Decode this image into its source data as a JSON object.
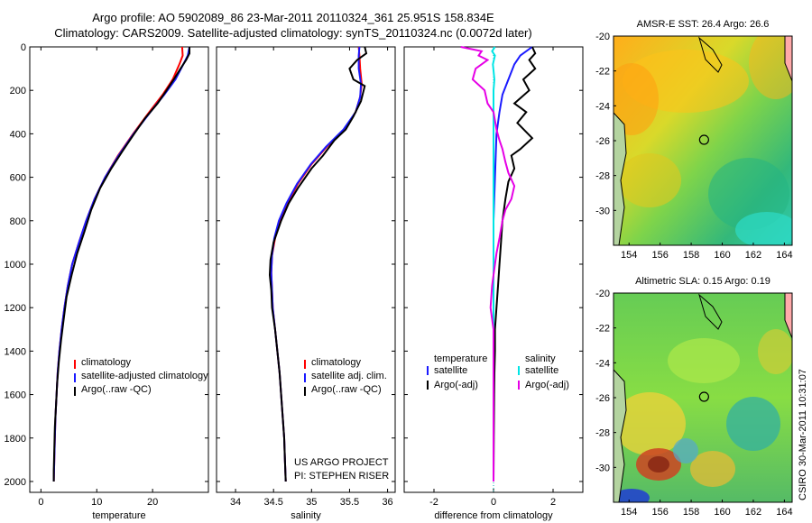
{
  "header": {
    "title_line1": "Argo profile: AO 5902089_86 23-Mar-2011 20110324_361 25.951S 158.834E",
    "title_line2": "Climatology: CARS2009. Satellite-adjusted climatology: synTS_20110324.nc (0.0072d later)"
  },
  "side_label": "CSIRO 30-Mar-2011 10:31:07",
  "colors": {
    "red": "#ff0000",
    "blue": "#1a1aff",
    "black": "#000000",
    "cyan": "#00e5e5",
    "magenta": "#e600e6"
  },
  "chart_data": [
    {
      "type": "line",
      "id": "temperature",
      "xlabel": "temperature",
      "xlim": [
        -2,
        30
      ],
      "ylim": [
        2050,
        0
      ],
      "xticks": [
        "0",
        "10",
        "20"
      ],
      "xtick_values": [
        0,
        10,
        20
      ],
      "yticks": [
        "0",
        "200",
        "400",
        "600",
        "800",
        "1000",
        "1200",
        "1400",
        "1600",
        "1800",
        "2000"
      ],
      "ytick_values": [
        0,
        200,
        400,
        600,
        800,
        1000,
        1200,
        1400,
        1600,
        1800,
        2000
      ],
      "legend": [
        "climatology",
        "satellite-adjusted climatology",
        "Argo(..raw -QC)"
      ],
      "series": [
        {
          "name": "climatology",
          "color": "red",
          "points": [
            [
              25.3,
              0
            ],
            [
              25.4,
              40
            ],
            [
              24.8,
              80
            ],
            [
              23.6,
              150
            ],
            [
              21.8,
              220
            ],
            [
              19.4,
              300
            ],
            [
              16.5,
              400
            ],
            [
              13.8,
              500
            ],
            [
              11.5,
              600
            ],
            [
              9.6,
              700
            ],
            [
              8.1,
              800
            ],
            [
              6.8,
              900
            ],
            [
              5.6,
              1000
            ],
            [
              4.8,
              1100
            ],
            [
              4.2,
              1200
            ],
            [
              3.7,
              1300
            ],
            [
              3.3,
              1400
            ],
            [
              3.0,
              1500
            ],
            [
              2.8,
              1600
            ],
            [
              2.6,
              1700
            ],
            [
              2.5,
              1800
            ],
            [
              2.4,
              1900
            ],
            [
              2.3,
              2000
            ]
          ]
        },
        {
          "name": "satellite-adjusted climatology",
          "color": "blue",
          "points": [
            [
              26.6,
              0
            ],
            [
              26.3,
              40
            ],
            [
              25.5,
              80
            ],
            [
              24.1,
              150
            ],
            [
              22.1,
              220
            ],
            [
              19.6,
              300
            ],
            [
              16.6,
              400
            ],
            [
              13.9,
              500
            ],
            [
              11.5,
              600
            ],
            [
              9.6,
              700
            ],
            [
              8.1,
              800
            ],
            [
              6.8,
              900
            ],
            [
              5.6,
              1000
            ],
            [
              4.8,
              1100
            ],
            [
              4.2,
              1200
            ],
            [
              3.7,
              1300
            ],
            [
              3.3,
              1400
            ],
            [
              3.0,
              1500
            ],
            [
              2.8,
              1600
            ],
            [
              2.6,
              1700
            ],
            [
              2.5,
              1800
            ],
            [
              2.4,
              1900
            ],
            [
              2.3,
              2000
            ]
          ]
        },
        {
          "name": "Argo(..raw -QC)",
          "color": "black",
          "points": [
            [
              26.6,
              0
            ],
            [
              26.6,
              30
            ],
            [
              26.0,
              60
            ],
            [
              25.0,
              100
            ],
            [
              23.8,
              150
            ],
            [
              22.5,
              200
            ],
            [
              20.9,
              260
            ],
            [
              18.6,
              330
            ],
            [
              16.7,
              400
            ],
            [
              14.6,
              480
            ],
            [
              12.6,
              560
            ],
            [
              10.6,
              650
            ],
            [
              9.0,
              750
            ],
            [
              7.8,
              850
            ],
            [
              6.5,
              950
            ],
            [
              5.5,
              1050
            ],
            [
              4.6,
              1150
            ],
            [
              4.1,
              1250
            ],
            [
              3.6,
              1350
            ],
            [
              3.2,
              1450
            ],
            [
              2.9,
              1550
            ],
            [
              2.7,
              1650
            ],
            [
              2.5,
              1750
            ],
            [
              2.4,
              1850
            ],
            [
              2.3,
              1950
            ],
            [
              2.3,
              2000
            ]
          ]
        }
      ]
    },
    {
      "type": "line",
      "id": "salinity",
      "xlabel": "salinity",
      "xlim": [
        33.75,
        36.1
      ],
      "ylim": [
        2050,
        0
      ],
      "xticks": [
        "34",
        "34.5",
        "35",
        "35.5",
        "36"
      ],
      "xtick_values": [
        34,
        34.5,
        35,
        35.5,
        36
      ],
      "legend": [
        "climatology",
        "satellite adj. clim.",
        "Argo(..raw -QC)"
      ],
      "annotation": [
        "US ARGO PROJECT",
        "PI: STEPHEN RISER"
      ],
      "series": [
        {
          "name": "climatology",
          "color": "red",
          "points": [
            [
              35.62,
              0
            ],
            [
              35.63,
              40
            ],
            [
              35.64,
              100
            ],
            [
              35.66,
              170
            ],
            [
              35.64,
              230
            ],
            [
              35.58,
              300
            ],
            [
              35.43,
              380
            ],
            [
              35.2,
              460
            ],
            [
              35.0,
              540
            ],
            [
              34.82,
              630
            ],
            [
              34.68,
              720
            ],
            [
              34.58,
              800
            ],
            [
              34.52,
              880
            ],
            [
              34.48,
              960
            ],
            [
              34.47,
              1040
            ],
            [
              34.48,
              1120
            ],
            [
              34.49,
              1200
            ],
            [
              34.52,
              1300
            ],
            [
              34.55,
              1400
            ],
            [
              34.58,
              1500
            ],
            [
              34.6,
              1600
            ],
            [
              34.62,
              1700
            ],
            [
              34.64,
              1800
            ],
            [
              34.65,
              1900
            ],
            [
              34.66,
              2000
            ]
          ]
        },
        {
          "name": "satellite adj. clim.",
          "color": "blue",
          "points": [
            [
              35.63,
              0
            ],
            [
              35.62,
              40
            ],
            [
              35.62,
              100
            ],
            [
              35.65,
              170
            ],
            [
              35.64,
              230
            ],
            [
              35.58,
              300
            ],
            [
              35.42,
              380
            ],
            [
              35.19,
              460
            ],
            [
              34.99,
              540
            ],
            [
              34.81,
              630
            ],
            [
              34.67,
              720
            ],
            [
              34.57,
              800
            ],
            [
              34.51,
              880
            ],
            [
              34.48,
              960
            ],
            [
              34.47,
              1040
            ],
            [
              34.48,
              1120
            ],
            [
              34.49,
              1200
            ],
            [
              34.52,
              1300
            ],
            [
              34.55,
              1400
            ],
            [
              34.58,
              1500
            ],
            [
              34.6,
              1600
            ],
            [
              34.62,
              1700
            ],
            [
              34.64,
              1800
            ],
            [
              34.65,
              1900
            ],
            [
              34.66,
              2000
            ]
          ]
        },
        {
          "name": "Argo(..raw -QC)",
          "color": "black",
          "points": [
            [
              35.7,
              0
            ],
            [
              35.72,
              30
            ],
            [
              35.6,
              60
            ],
            [
              35.5,
              100
            ],
            [
              35.55,
              150
            ],
            [
              35.7,
              180
            ],
            [
              35.65,
              250
            ],
            [
              35.55,
              320
            ],
            [
              35.45,
              380
            ],
            [
              35.3,
              430
            ],
            [
              35.15,
              500
            ],
            [
              35.0,
              560
            ],
            [
              34.82,
              650
            ],
            [
              34.7,
              720
            ],
            [
              34.6,
              800
            ],
            [
              34.5,
              900
            ],
            [
              34.46,
              980
            ],
            [
              34.45,
              1050
            ],
            [
              34.47,
              1120
            ],
            [
              34.48,
              1200
            ],
            [
              34.52,
              1300
            ],
            [
              34.55,
              1400
            ],
            [
              34.58,
              1500
            ],
            [
              34.6,
              1600
            ],
            [
              34.62,
              1700
            ],
            [
              34.64,
              1800
            ],
            [
              34.65,
              1900
            ],
            [
              34.66,
              2000
            ]
          ]
        }
      ]
    },
    {
      "type": "line",
      "id": "difference",
      "xlabel": "difference from climatology",
      "xlim": [
        -3,
        3
      ],
      "ylim": [
        2050,
        0
      ],
      "xticks": [
        "-2",
        "0",
        "2"
      ],
      "xtick_values": [
        -2,
        0,
        2
      ],
      "legend_left": [
        "temperature",
        "satellite",
        "Argo(-adj)"
      ],
      "legend_right": [
        "salinity",
        "satellite",
        "Argo(-adj)"
      ],
      "series": [
        {
          "name": "temperature satellite",
          "color": "blue",
          "points": [
            [
              1.3,
              0
            ],
            [
              0.9,
              40
            ],
            [
              0.7,
              80
            ],
            [
              0.5,
              150
            ],
            [
              0.3,
              220
            ],
            [
              0.2,
              300
            ],
            [
              0.1,
              400
            ],
            [
              0.05,
              600
            ],
            [
              0.0,
              800
            ],
            [
              0.0,
              2000
            ]
          ]
        },
        {
          "name": "temperature Argo(-adj)",
          "color": "black",
          "points": [
            [
              1.3,
              0
            ],
            [
              1.4,
              30
            ],
            [
              1.2,
              60
            ],
            [
              1.4,
              100
            ],
            [
              1.0,
              150
            ],
            [
              1.2,
              200
            ],
            [
              0.7,
              260
            ],
            [
              1.1,
              300
            ],
            [
              0.8,
              350
            ],
            [
              1.3,
              420
            ],
            [
              0.9,
              470
            ],
            [
              0.6,
              500
            ],
            [
              0.7,
              560
            ],
            [
              0.5,
              620
            ],
            [
              0.4,
              700
            ],
            [
              0.3,
              800
            ],
            [
              0.25,
              900
            ],
            [
              0.2,
              1000
            ],
            [
              0.15,
              1100
            ],
            [
              0.1,
              1200
            ],
            [
              0.05,
              1300
            ],
            [
              0.05,
              1400
            ],
            [
              0.03,
              1500
            ],
            [
              0.02,
              1600
            ],
            [
              0.01,
              1800
            ],
            [
              0.0,
              2000
            ]
          ]
        },
        {
          "name": "salinity satellite",
          "color": "cyan",
          "points": [
            [
              0.05,
              0
            ],
            [
              -0.05,
              20
            ],
            [
              0.05,
              40
            ],
            [
              -0.02,
              80
            ],
            [
              0.03,
              150
            ],
            [
              0.0,
              200
            ],
            [
              0.0,
              2000
            ]
          ]
        },
        {
          "name": "salinity Argo(-adj)",
          "color": "magenta",
          "points": [
            [
              -1.1,
              0
            ],
            [
              -0.4,
              20
            ],
            [
              -0.5,
              40
            ],
            [
              -0.2,
              60
            ],
            [
              -0.6,
              100
            ],
            [
              -0.7,
              150
            ],
            [
              -0.3,
              200
            ],
            [
              -0.2,
              260
            ],
            [
              0.0,
              300
            ],
            [
              0.1,
              380
            ],
            [
              0.2,
              430
            ],
            [
              0.3,
              470
            ],
            [
              0.4,
              530
            ],
            [
              0.5,
              580
            ],
            [
              0.7,
              640
            ],
            [
              0.6,
              700
            ],
            [
              0.4,
              750
            ],
            [
              0.3,
              800
            ],
            [
              0.2,
              880
            ],
            [
              0.1,
              950
            ],
            [
              0.0,
              1050
            ],
            [
              -0.05,
              1100
            ],
            [
              -0.1,
              1200
            ],
            [
              0.0,
              1300
            ],
            [
              0.0,
              1400
            ],
            [
              0.0,
              2000
            ]
          ]
        }
      ]
    },
    {
      "type": "heatmap",
      "id": "sst_map",
      "title": "AMSR-E SST: 26.4 Argo: 26.6",
      "xlim": [
        153,
        164.5
      ],
      "ylim": [
        -32,
        -20
      ],
      "xticks": [
        "154",
        "156",
        "158",
        "160",
        "162",
        "164"
      ],
      "xtick_values": [
        154,
        156,
        158,
        160,
        162,
        164
      ],
      "yticks": [
        "-20",
        "-22",
        "-24",
        "-26",
        "-28",
        "-30"
      ],
      "ytick_values": [
        -20,
        -22,
        -24,
        -26,
        -28,
        -30
      ],
      "marker": [
        158.83,
        -25.95
      ]
    },
    {
      "type": "heatmap",
      "id": "sla_map",
      "title": "Altimetric SLA: 0.15 Argo: 0.19",
      "xlim": [
        153,
        164.5
      ],
      "ylim": [
        -32,
        -20
      ],
      "xticks": [
        "154",
        "156",
        "158",
        "160",
        "162",
        "164"
      ],
      "xtick_values": [
        154,
        156,
        158,
        160,
        162,
        164
      ],
      "yticks": [
        "-20",
        "-22",
        "-24",
        "-26",
        "-28",
        "-30"
      ],
      "ytick_values": [
        -20,
        -22,
        -24,
        -26,
        -28,
        -30
      ],
      "marker": [
        158.83,
        -25.95
      ]
    }
  ]
}
